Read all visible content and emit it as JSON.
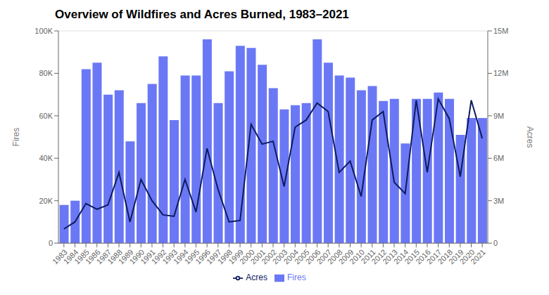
{
  "chart_data": {
    "type": "bar",
    "title": "Overview of Wildfires and Acres Burned, 1983–2021",
    "categories": [
      "1983",
      "1984",
      "1985",
      "1986",
      "1987",
      "1988",
      "1989",
      "1990",
      "1991",
      "1992",
      "1993",
      "1994",
      "1995",
      "1996",
      "1997",
      "1998",
      "1999",
      "2000",
      "2001",
      "2002",
      "2003",
      "2004",
      "2005",
      "2006",
      "2007",
      "2008",
      "2009",
      "2010",
      "2011",
      "2012",
      "2013",
      "2014",
      "2015",
      "2016",
      "2017",
      "2018",
      "2019",
      "2020",
      "2021"
    ],
    "series": [
      {
        "name": "Fires",
        "type": "bar",
        "color": "#6b78f5",
        "values": [
          18000,
          20000,
          82000,
          85000,
          70000,
          72000,
          48000,
          66000,
          75000,
          88000,
          58000,
          79000,
          79000,
          96000,
          66000,
          81000,
          93000,
          92000,
          84000,
          73000,
          63000,
          65000,
          66000,
          96000,
          85000,
          79000,
          78000,
          72000,
          74000,
          67000,
          68000,
          47000,
          68000,
          68000,
          71000,
          68000,
          51000,
          59000,
          59000
        ]
      },
      {
        "name": "Acres",
        "type": "line",
        "color": "#0d1b5e",
        "axis": "y2",
        "values": [
          1000000,
          1500000,
          2800000,
          2400000,
          2700000,
          5000000,
          1500000,
          4500000,
          3000000,
          2000000,
          1900000,
          4500000,
          2200000,
          6700000,
          3800000,
          1500000,
          1600000,
          8400000,
          7000000,
          7200000,
          4000000,
          8200000,
          8700000,
          9900000,
          9300000,
          5000000,
          5800000,
          3300000,
          8700000,
          9300000,
          4300000,
          3500000,
          10100000,
          5000000,
          10200000,
          8800000,
          4700000,
          10100000,
          7400000
        ]
      }
    ],
    "ylabel": "Fires",
    "y2label": "Acres",
    "ylim": [
      0,
      100000
    ],
    "yticks": [
      0,
      {
        "value": 20000,
        "label": "20K"
      },
      {
        "value": 40000,
        "label": "40K"
      },
      {
        "value": 60000,
        "label": "60K"
      },
      {
        "value": 80000,
        "label": "80K"
      },
      {
        "value": 100000,
        "label": "100K"
      }
    ],
    "y2lim": [
      0,
      15000000
    ],
    "y2ticks": [
      0,
      {
        "value": 3000000,
        "label": "3M"
      },
      {
        "value": 6000000,
        "label": "6M"
      },
      {
        "value": 9000000,
        "label": "9M"
      },
      {
        "value": 12000000,
        "label": "12M"
      },
      {
        "value": 15000000,
        "label": "15M"
      }
    ],
    "grid": true,
    "legend": "bottom"
  }
}
